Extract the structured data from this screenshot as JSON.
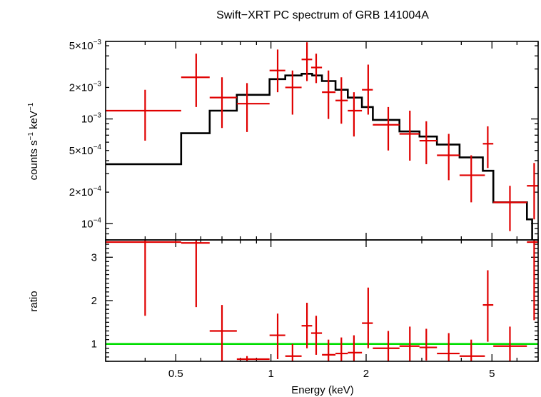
{
  "chart_data": [
    {
      "type": "scatter",
      "title": "Swift−XRT PC spectrum of GRB 141004A",
      "xlabel": "",
      "ylabel": "counts s⁻¹ keV⁻¹",
      "x_scale": "log",
      "y_scale": "log",
      "xlim": [
        0.3,
        7.0
      ],
      "ylim": [
        7e-05,
        0.0055
      ],
      "y_ticks": [
        {
          "value": 0.0001,
          "mant": "",
          "exp": "−4"
        },
        {
          "value": 0.0002,
          "mant": "2×",
          "exp": "−4"
        },
        {
          "value": 0.0005,
          "mant": "5×",
          "exp": "−4"
        },
        {
          "value": 0.001,
          "mant": "",
          "exp": "−3"
        },
        {
          "value": 0.002,
          "mant": "2×",
          "exp": "−3"
        },
        {
          "value": 0.005,
          "mant": "5×",
          "exp": "−3"
        }
      ],
      "colors": {
        "data": "#e00000",
        "model": "#000000"
      },
      "series": [
        {
          "kind": "data",
          "points": [
            {
              "x": 0.4,
              "xlo": 0.3,
              "xhi": 0.52,
              "y": 0.0012,
              "ylo": 0.00062,
              "yhi": 0.0019
            },
            {
              "x": 0.58,
              "xlo": 0.52,
              "xhi": 0.64,
              "y": 0.0025,
              "ylo": 0.0013,
              "yhi": 0.0042
            },
            {
              "x": 0.7,
              "xlo": 0.64,
              "xhi": 0.78,
              "y": 0.0016,
              "ylo": 0.00082,
              "yhi": 0.0025
            },
            {
              "x": 0.84,
              "xlo": 0.78,
              "xhi": 0.99,
              "y": 0.0014,
              "ylo": 0.00075,
              "yhi": 0.0022
            },
            {
              "x": 1.05,
              "xlo": 0.99,
              "xhi": 1.11,
              "y": 0.0029,
              "ylo": 0.0018,
              "yhi": 0.0046
            },
            {
              "x": 1.17,
              "xlo": 1.11,
              "xhi": 1.25,
              "y": 0.002,
              "ylo": 0.0011,
              "yhi": 0.0029
            },
            {
              "x": 1.3,
              "xlo": 1.25,
              "xhi": 1.35,
              "y": 0.0037,
              "ylo": 0.0023,
              "yhi": 0.0054
            },
            {
              "x": 1.39,
              "xlo": 1.34,
              "xhi": 1.45,
              "y": 0.0031,
              "ylo": 0.0022,
              "yhi": 0.0042
            },
            {
              "x": 1.52,
              "xlo": 1.45,
              "xhi": 1.6,
              "y": 0.0018,
              "ylo": 0.001,
              "yhi": 0.0029
            },
            {
              "x": 1.67,
              "xlo": 1.6,
              "xhi": 1.75,
              "y": 0.0015,
              "ylo": 0.0009,
              "yhi": 0.0025
            },
            {
              "x": 1.83,
              "xlo": 1.75,
              "xhi": 1.94,
              "y": 0.0012,
              "ylo": 0.00068,
              "yhi": 0.0018
            },
            {
              "x": 2.03,
              "xlo": 1.94,
              "xhi": 2.1,
              "y": 0.0019,
              "ylo": 0.0011,
              "yhi": 0.0033
            },
            {
              "x": 2.35,
              "xlo": 2.1,
              "xhi": 2.55,
              "y": 0.00088,
              "ylo": 0.0005,
              "yhi": 0.0013
            },
            {
              "x": 2.75,
              "xlo": 2.55,
              "xhi": 2.95,
              "y": 0.00072,
              "ylo": 0.0004,
              "yhi": 0.0012
            },
            {
              "x": 3.1,
              "xlo": 2.95,
              "xhi": 3.35,
              "y": 0.00062,
              "ylo": 0.00037,
              "yhi": 0.00095
            },
            {
              "x": 3.65,
              "xlo": 3.35,
              "xhi": 3.95,
              "y": 0.00045,
              "ylo": 0.00026,
              "yhi": 0.00072
            },
            {
              "x": 4.3,
              "xlo": 3.95,
              "xhi": 4.75,
              "y": 0.00029,
              "ylo": 0.00016,
              "yhi": 0.00045
            },
            {
              "x": 4.85,
              "xlo": 4.68,
              "xhi": 5.05,
              "y": 0.00058,
              "ylo": 0.00034,
              "yhi": 0.00085
            },
            {
              "x": 5.7,
              "xlo": 5.05,
              "xhi": 6.45,
              "y": 0.00016,
              "ylo": 8.5e-05,
              "yhi": 0.00023
            },
            {
              "x": 6.8,
              "xlo": 6.45,
              "xhi": 7.0,
              "y": 0.00023,
              "ylo": 0.00011,
              "yhi": 0.00038
            }
          ]
        },
        {
          "kind": "model",
          "steps": [
            {
              "xlo": 0.3,
              "xhi": 0.52,
              "y": 0.00037
            },
            {
              "xlo": 0.52,
              "xhi": 0.64,
              "y": 0.00073
            },
            {
              "xlo": 0.64,
              "xhi": 0.78,
              "y": 0.0012
            },
            {
              "xlo": 0.78,
              "xhi": 0.99,
              "y": 0.0017
            },
            {
              "xlo": 0.99,
              "xhi": 1.11,
              "y": 0.0024
            },
            {
              "xlo": 1.11,
              "xhi": 1.25,
              "y": 0.0026
            },
            {
              "xlo": 1.25,
              "xhi": 1.35,
              "y": 0.0027
            },
            {
              "xlo": 1.35,
              "xhi": 1.45,
              "y": 0.0026
            },
            {
              "xlo": 1.45,
              "xhi": 1.6,
              "y": 0.0023
            },
            {
              "xlo": 1.6,
              "xhi": 1.75,
              "y": 0.0019
            },
            {
              "xlo": 1.75,
              "xhi": 1.94,
              "y": 0.0016
            },
            {
              "xlo": 1.94,
              "xhi": 2.1,
              "y": 0.0013
            },
            {
              "xlo": 2.1,
              "xhi": 2.55,
              "y": 0.00098
            },
            {
              "xlo": 2.55,
              "xhi": 2.95,
              "y": 0.00076
            },
            {
              "xlo": 2.95,
              "xhi": 3.35,
              "y": 0.00068
            },
            {
              "xlo": 3.35,
              "xhi": 3.95,
              "y": 0.00057
            },
            {
              "xlo": 3.95,
              "xhi": 4.68,
              "y": 0.00043
            },
            {
              "xlo": 4.68,
              "xhi": 5.05,
              "y": 0.00032
            },
            {
              "xlo": 5.05,
              "xhi": 6.45,
              "y": 0.00016
            },
            {
              "xlo": 6.45,
              "xhi": 6.7,
              "y": 0.00011
            }
          ]
        }
      ]
    },
    {
      "type": "scatter",
      "xlabel": "Energy (keV)",
      "ylabel": "ratio",
      "x_scale": "log",
      "xlim": [
        0.3,
        7.0
      ],
      "ylim": [
        0.6,
        3.4
      ],
      "x_ticks": [
        {
          "value": 0.5,
          "label": "0.5"
        },
        {
          "value": 1,
          "label": "1"
        },
        {
          "value": 2,
          "label": "2"
        },
        {
          "value": 5,
          "label": "5"
        }
      ],
      "y_ticks": [
        {
          "value": 1,
          "label": "1"
        },
        {
          "value": 2,
          "label": "2"
        },
        {
          "value": 3,
          "label": "3"
        }
      ],
      "reference_line": 1,
      "colors": {
        "data": "#e00000",
        "reference": "#00dd00"
      },
      "series": [
        {
          "kind": "data",
          "points": [
            {
              "x": 0.4,
              "xlo": 0.3,
              "xhi": 0.52,
              "y": 3.35,
              "ylo": 1.65,
              "yhi": 3.4
            },
            {
              "x": 0.58,
              "xlo": 0.52,
              "xhi": 0.64,
              "y": 3.33,
              "ylo": 1.85,
              "yhi": 3.4
            },
            {
              "x": 0.7,
              "xlo": 0.64,
              "xhi": 0.78,
              "y": 1.3,
              "ylo": 0.6,
              "yhi": 1.9
            },
            {
              "x": 0.84,
              "xlo": 0.78,
              "xhi": 0.99,
              "y": 0.65,
              "ylo": 0.6,
              "yhi": 0.72
            },
            {
              "x": 1.05,
              "xlo": 0.99,
              "xhi": 1.11,
              "y": 1.2,
              "ylo": 0.65,
              "yhi": 1.7
            },
            {
              "x": 1.17,
              "xlo": 1.11,
              "xhi": 1.25,
              "y": 0.72,
              "ylo": 0.6,
              "yhi": 1.0
            },
            {
              "x": 1.3,
              "xlo": 1.25,
              "xhi": 1.35,
              "y": 1.42,
              "ylo": 0.9,
              "yhi": 1.95
            },
            {
              "x": 1.39,
              "xlo": 1.34,
              "xhi": 1.45,
              "y": 1.25,
              "ylo": 0.75,
              "yhi": 1.65
            },
            {
              "x": 1.52,
              "xlo": 1.45,
              "xhi": 1.6,
              "y": 0.75,
              "ylo": 0.6,
              "yhi": 1.1
            },
            {
              "x": 1.67,
              "xlo": 1.6,
              "xhi": 1.75,
              "y": 0.78,
              "ylo": 0.6,
              "yhi": 1.15
            },
            {
              "x": 1.83,
              "xlo": 1.75,
              "xhi": 1.94,
              "y": 0.8,
              "ylo": 0.6,
              "yhi": 1.2
            },
            {
              "x": 2.03,
              "xlo": 1.94,
              "xhi": 2.1,
              "y": 1.48,
              "ylo": 0.9,
              "yhi": 2.3
            },
            {
              "x": 2.35,
              "xlo": 2.1,
              "xhi": 2.55,
              "y": 0.9,
              "ylo": 0.6,
              "yhi": 1.3
            },
            {
              "x": 2.75,
              "xlo": 2.55,
              "xhi": 2.95,
              "y": 0.95,
              "ylo": 0.6,
              "yhi": 1.4
            },
            {
              "x": 3.1,
              "xlo": 2.95,
              "xhi": 3.35,
              "y": 0.92,
              "ylo": 0.62,
              "yhi": 1.35
            },
            {
              "x": 3.65,
              "xlo": 3.35,
              "xhi": 3.95,
              "y": 0.78,
              "ylo": 0.6,
              "yhi": 1.25
            },
            {
              "x": 4.3,
              "xlo": 3.95,
              "xhi": 4.75,
              "y": 0.72,
              "ylo": 0.6,
              "yhi": 1.1
            },
            {
              "x": 4.85,
              "xlo": 4.68,
              "xhi": 5.05,
              "y": 1.9,
              "ylo": 1.05,
              "yhi": 2.7
            },
            {
              "x": 5.7,
              "xlo": 5.05,
              "xhi": 6.45,
              "y": 0.95,
              "ylo": 0.6,
              "yhi": 1.4
            },
            {
              "x": 6.8,
              "xlo": 6.45,
              "xhi": 7.0,
              "y": 3.35,
              "ylo": 1.55,
              "yhi": 3.4
            }
          ]
        }
      ]
    }
  ]
}
